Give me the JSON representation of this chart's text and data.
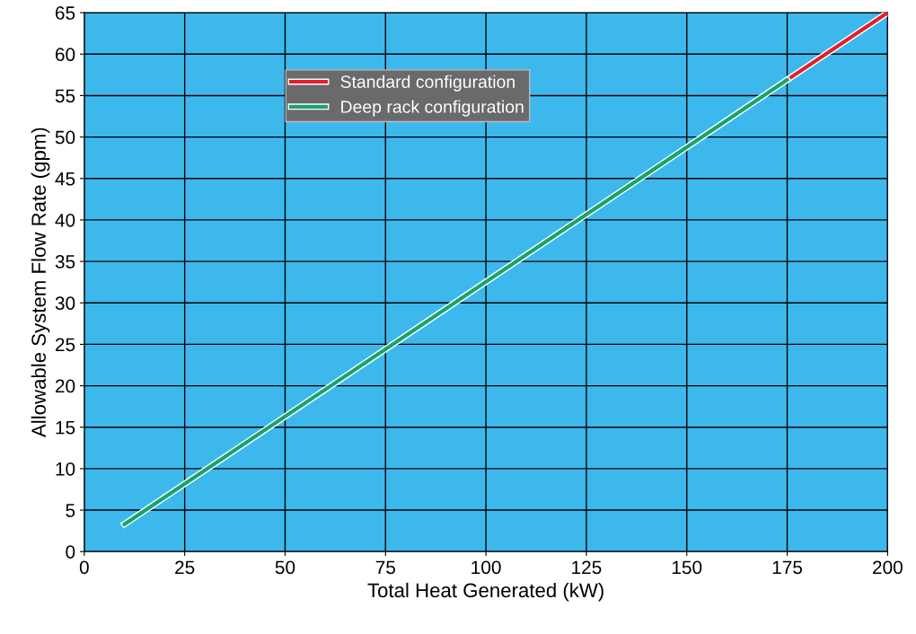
{
  "chart_data": {
    "type": "line",
    "xlabel": "Total Heat Generated (kW)",
    "ylabel": "Allowable System Flow Rate (gpm)",
    "series": [
      {
        "name": "Standard configuration",
        "color": "#e0202a",
        "x": [
          175,
          200
        ],
        "values": [
          56.9,
          65
        ]
      },
      {
        "name": "Deep rack configuration",
        "color": "#1aa36a",
        "x": [
          10,
          175
        ],
        "values": [
          3.3,
          56.9
        ]
      }
    ],
    "xlim": [
      0,
      200
    ],
    "xticks": [
      0,
      25,
      50,
      75,
      100,
      125,
      150,
      175,
      200
    ],
    "ylim": [
      0,
      65
    ],
    "yticks": [
      0,
      5,
      10,
      15,
      20,
      25,
      30,
      35,
      40,
      45,
      50,
      55,
      60,
      65
    ],
    "grid": true,
    "legend": "top left",
    "marker": "none",
    "line_style": "solid"
  }
}
